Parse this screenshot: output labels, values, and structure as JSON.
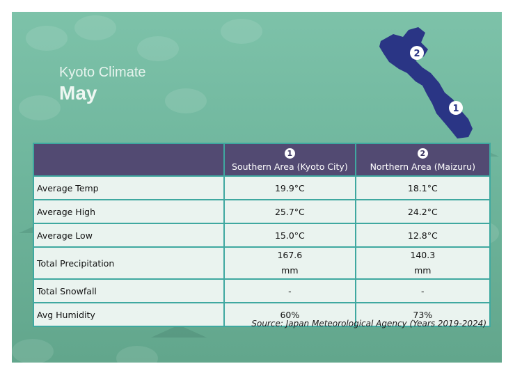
{
  "title": "Kyoto Climate",
  "month": "May",
  "columns": [
    {
      "marker": "1",
      "label": "Southern Area (Kyoto City)"
    },
    {
      "marker": "2",
      "label": "Northern Area (Maizuru)"
    }
  ],
  "rows": [
    {
      "label": "Average Temp",
      "south": "19.9°C",
      "north": "18.1°C"
    },
    {
      "label": "Average High",
      "south": "25.7°C",
      "north": "24.2°C"
    },
    {
      "label": "Average Low",
      "south": "15.0°C",
      "north": "12.8°C"
    },
    {
      "label": "Total Precipitation",
      "south_value": "167.6",
      "south_unit": "mm",
      "north_value": "140.3",
      "north_unit": "mm"
    },
    {
      "label": "Total Snowfall",
      "south": "-",
      "north": "-"
    },
    {
      "label": "Avg Humidity",
      "south": "60%",
      "north": "73%"
    }
  ],
  "map_markers": [
    "2",
    "1"
  ],
  "source": "Source: Japan Meteorological Agency (Years 2019-2024)",
  "colors": {
    "background": "#74bba2",
    "header": "#524a72",
    "border": "#3fa8a0",
    "map": "#2a3585",
    "cell": "#eaf3ef"
  }
}
